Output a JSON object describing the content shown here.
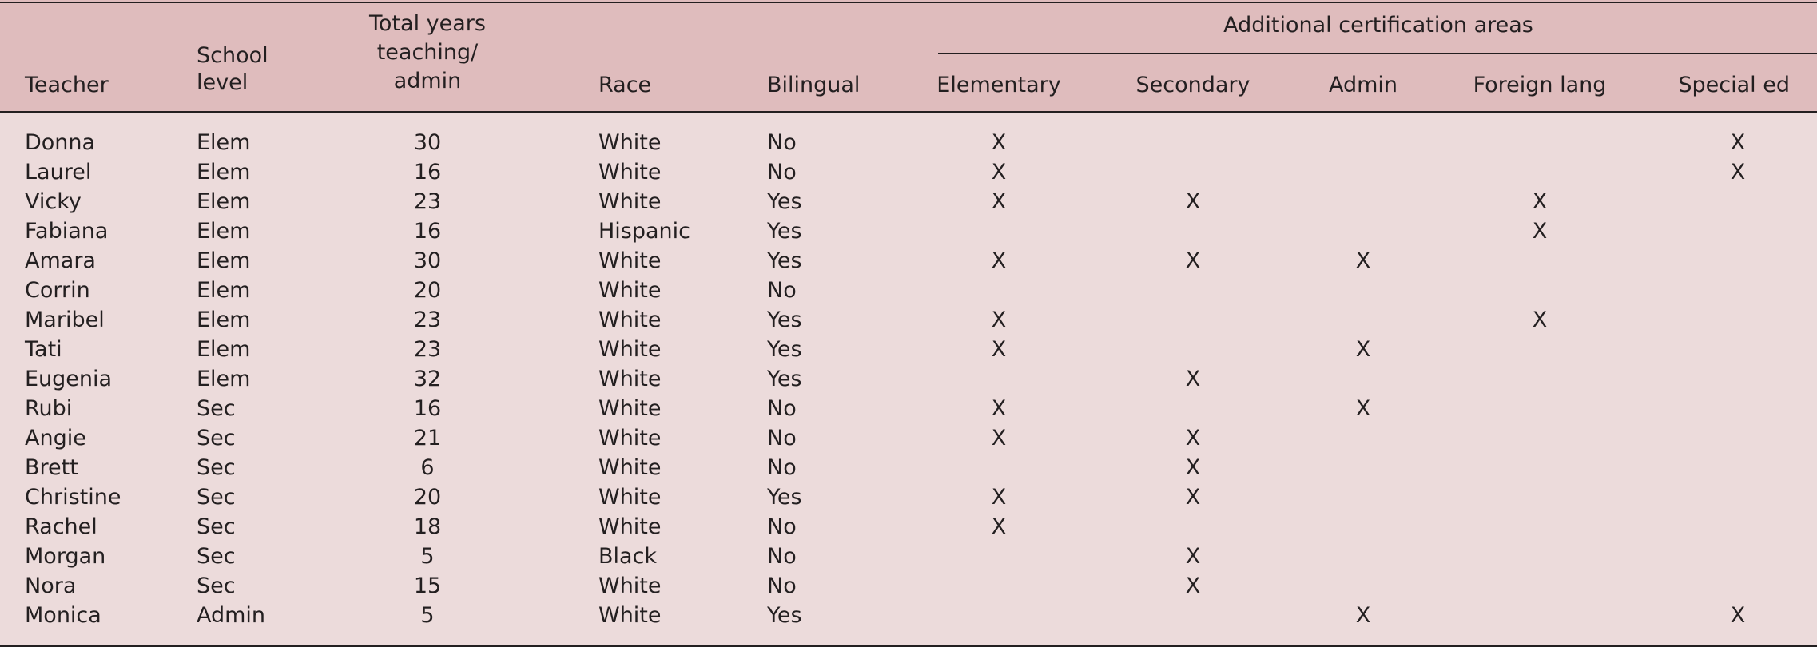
{
  "headers": {
    "teacher": "Teacher",
    "school_level_1": "School",
    "school_level_2": "level",
    "years_1": "Total years",
    "years_2": "teaching/",
    "years_3": "admin",
    "race": "Race",
    "bilingual": "Bilingual",
    "group": "Additional certification areas",
    "elementary": "Elementary",
    "secondary": "Secondary",
    "admin": "Admin",
    "foreign_lang": "Foreign lang",
    "special_ed": "Special ed"
  },
  "rows": [
    {
      "teacher": "Donna",
      "level": "Elem",
      "years": "30",
      "race": "White",
      "bilingual": "No",
      "elementary": "X",
      "secondary": "",
      "admin": "",
      "foreign_lang": "",
      "special_ed": "X"
    },
    {
      "teacher": "Laurel",
      "level": "Elem",
      "years": "16",
      "race": "White",
      "bilingual": "No",
      "elementary": "X",
      "secondary": "",
      "admin": "",
      "foreign_lang": "",
      "special_ed": "X"
    },
    {
      "teacher": "Vicky",
      "level": "Elem",
      "years": "23",
      "race": "White",
      "bilingual": "Yes",
      "elementary": "X",
      "secondary": "X",
      "admin": "",
      "foreign_lang": "X",
      "special_ed": ""
    },
    {
      "teacher": "Fabiana",
      "level": "Elem",
      "years": "16",
      "race": "Hispanic",
      "bilingual": "Yes",
      "elementary": "",
      "secondary": "",
      "admin": "",
      "foreign_lang": "X",
      "special_ed": ""
    },
    {
      "teacher": "Amara",
      "level": "Elem",
      "years": "30",
      "race": "White",
      "bilingual": "Yes",
      "elementary": "X",
      "secondary": "X",
      "admin": "X",
      "foreign_lang": "",
      "special_ed": ""
    },
    {
      "teacher": "Corrin",
      "level": "Elem",
      "years": "20",
      "race": "White",
      "bilingual": "No",
      "elementary": "",
      "secondary": "",
      "admin": "",
      "foreign_lang": "",
      "special_ed": ""
    },
    {
      "teacher": "Maribel",
      "level": "Elem",
      "years": "23",
      "race": "White",
      "bilingual": "Yes",
      "elementary": "X",
      "secondary": "",
      "admin": "",
      "foreign_lang": "X",
      "special_ed": ""
    },
    {
      "teacher": "Tati",
      "level": "Elem",
      "years": "23",
      "race": "White",
      "bilingual": "Yes",
      "elementary": "X",
      "secondary": "",
      "admin": "X",
      "foreign_lang": "",
      "special_ed": ""
    },
    {
      "teacher": "Eugenia",
      "level": "Elem",
      "years": "32",
      "race": "White",
      "bilingual": "Yes",
      "elementary": "",
      "secondary": "X",
      "admin": "",
      "foreign_lang": "",
      "special_ed": ""
    },
    {
      "teacher": "Rubi",
      "level": "Sec",
      "years": "16",
      "race": "White",
      "bilingual": "No",
      "elementary": "X",
      "secondary": "",
      "admin": "X",
      "foreign_lang": "",
      "special_ed": ""
    },
    {
      "teacher": "Angie",
      "level": "Sec",
      "years": "21",
      "race": "White",
      "bilingual": "No",
      "elementary": "X",
      "secondary": "X",
      "admin": "",
      "foreign_lang": "",
      "special_ed": ""
    },
    {
      "teacher": "Brett",
      "level": "Sec",
      "years": "6",
      "race": "White",
      "bilingual": "No",
      "elementary": "",
      "secondary": "X",
      "admin": "",
      "foreign_lang": "",
      "special_ed": ""
    },
    {
      "teacher": "Christine",
      "level": "Sec",
      "years": "20",
      "race": "White",
      "bilingual": "Yes",
      "elementary": "X",
      "secondary": "X",
      "admin": "",
      "foreign_lang": "",
      "special_ed": ""
    },
    {
      "teacher": "Rachel",
      "level": "Sec",
      "years": "18",
      "race": "White",
      "bilingual": "No",
      "elementary": "X",
      "secondary": "",
      "admin": "",
      "foreign_lang": "",
      "special_ed": ""
    },
    {
      "teacher": "Morgan",
      "level": "Sec",
      "years": "5",
      "race": "Black",
      "bilingual": "No",
      "elementary": "",
      "secondary": "X",
      "admin": "",
      "foreign_lang": "",
      "special_ed": ""
    },
    {
      "teacher": "Nora",
      "level": "Sec",
      "years": "15",
      "race": "White",
      "bilingual": "No",
      "elementary": "",
      "secondary": "X",
      "admin": "",
      "foreign_lang": "",
      "special_ed": ""
    },
    {
      "teacher": "Monica",
      "level": "Admin",
      "years": "5",
      "race": "White",
      "bilingual": "Yes",
      "elementary": "",
      "secondary": "",
      "admin": "X",
      "foreign_lang": "",
      "special_ed": "X"
    }
  ]
}
